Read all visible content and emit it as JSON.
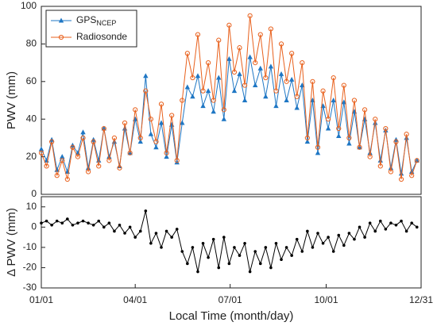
{
  "chart_data": [
    {
      "type": "line",
      "ylabel": "PWV (mm)",
      "legend": "upper left",
      "x": [
        1,
        6,
        11,
        16,
        21,
        26,
        31,
        36,
        41,
        46,
        51,
        56,
        61,
        66,
        71,
        76,
        81,
        86,
        91,
        96,
        101,
        106,
        111,
        116,
        121,
        126,
        131,
        136,
        141,
        146,
        151,
        156,
        161,
        166,
        171,
        176,
        181,
        186,
        191,
        196,
        201,
        206,
        211,
        216,
        221,
        226,
        231,
        236,
        241,
        246,
        251,
        256,
        261,
        266,
        271,
        276,
        281,
        286,
        291,
        296,
        301,
        306,
        311,
        316,
        321,
        326,
        331,
        336,
        341,
        346,
        351,
        356,
        361
      ],
      "xlim": [
        1,
        365
      ],
      "ylim": [
        0,
        100
      ],
      "yticks": [
        0,
        20,
        40,
        60,
        80,
        100
      ],
      "series": [
        {
          "name": "GPSNCEP",
          "color": "#1f77c4",
          "marker": "triangle",
          "values": [
            24,
            18,
            29,
            13,
            20,
            12,
            26,
            22,
            33,
            14,
            29,
            18,
            35,
            20,
            28,
            15,
            35,
            22,
            40,
            28,
            63,
            32,
            25,
            38,
            20,
            37,
            17,
            38,
            57,
            52,
            63,
            47,
            55,
            44,
            62,
            40,
            72,
            55,
            64,
            50,
            73,
            58,
            67,
            52,
            68,
            47,
            64,
            50,
            61,
            46,
            58,
            28,
            50,
            22,
            47,
            35,
            50,
            31,
            49,
            27,
            44,
            25,
            40,
            22,
            38,
            18,
            34,
            14,
            29,
            11,
            30,
            12,
            18
          ]
        },
        {
          "name": "Radiosonde",
          "color": "#e8601c",
          "marker": "circle",
          "values": [
            22,
            15,
            28,
            10,
            18,
            8,
            25,
            20,
            30,
            12,
            28,
            15,
            35,
            18,
            30,
            14,
            38,
            22,
            45,
            30,
            55,
            40,
            28,
            48,
            22,
            42,
            18,
            50,
            75,
            62,
            85,
            55,
            70,
            50,
            82,
            45,
            90,
            65,
            78,
            58,
            95,
            70,
            85,
            62,
            88,
            55,
            80,
            60,
            75,
            52,
            70,
            30,
            60,
            25,
            55,
            40,
            62,
            35,
            58,
            30,
            50,
            25,
            45,
            20,
            40,
            15,
            35,
            12,
            28,
            8,
            32,
            10,
            18
          ]
        }
      ]
    },
    {
      "type": "line",
      "xlabel": "Local Time (month/day)",
      "ylabel": "Δ PWV (mm)",
      "x": [
        1,
        6,
        11,
        16,
        21,
        26,
        31,
        36,
        41,
        46,
        51,
        56,
        61,
        66,
        71,
        76,
        81,
        86,
        91,
        96,
        101,
        106,
        111,
        116,
        121,
        126,
        131,
        136,
        141,
        146,
        151,
        156,
        161,
        166,
        171,
        176,
        181,
        186,
        191,
        196,
        201,
        206,
        211,
        216,
        221,
        226,
        231,
        236,
        241,
        246,
        251,
        256,
        261,
        266,
        271,
        276,
        281,
        286,
        291,
        296,
        301,
        306,
        311,
        316,
        321,
        326,
        331,
        336,
        341,
        346,
        351,
        356,
        361
      ],
      "xlim": [
        1,
        365
      ],
      "xticks": [
        {
          "value": 1,
          "label": "01/01"
        },
        {
          "value": 91,
          "label": "04/01"
        },
        {
          "value": 182,
          "label": "07/01"
        },
        {
          "value": 274,
          "label": "10/01"
        },
        {
          "value": 365,
          "label": "12/31"
        }
      ],
      "ylim": [
        -30,
        15
      ],
      "yticks": [
        -30,
        -20,
        -10,
        0,
        10
      ],
      "series": [
        {
          "color": "#000000",
          "marker": "dot",
          "values": [
            2,
            3,
            1,
            3,
            2,
            4,
            1,
            2,
            3,
            2,
            1,
            3,
            0,
            2,
            -2,
            1,
            -3,
            0,
            -5,
            -2,
            8,
            -8,
            -3,
            -10,
            -2,
            -5,
            -1,
            -12,
            -18,
            -10,
            -22,
            -8,
            -15,
            -6,
            -20,
            -5,
            -18,
            -10,
            -14,
            -8,
            -22,
            -12,
            -18,
            -10,
            -20,
            -8,
            -16,
            -10,
            -14,
            -6,
            -12,
            -2,
            -10,
            -3,
            -8,
            -5,
            -12,
            -4,
            -9,
            -3,
            -6,
            0,
            -5,
            2,
            -2,
            3,
            -1,
            2,
            1,
            3,
            -2,
            2,
            0
          ]
        }
      ]
    }
  ]
}
